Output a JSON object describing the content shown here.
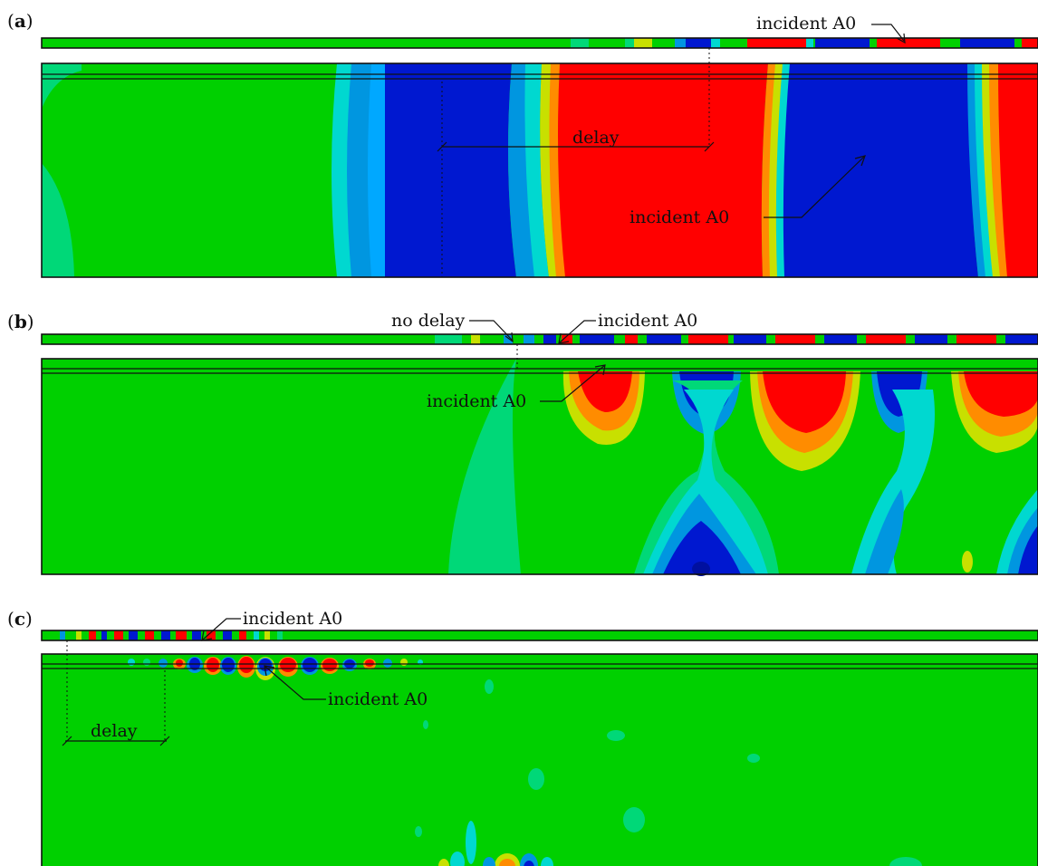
{
  "panels": [
    {
      "id": "a",
      "label_open": "(",
      "label_letter": "a",
      "label_close": ")"
    },
    {
      "id": "b",
      "label_open": "(",
      "label_letter": "b",
      "label_close": ")"
    },
    {
      "id": "c",
      "label_open": "(",
      "label_letter": "c",
      "label_close": ")"
    }
  ],
  "annotations": {
    "a_incident_top": "incident A0",
    "a_delay": "delay",
    "a_incident_main": "incident A0",
    "b_no_delay": "no delay",
    "b_incident_top": "incident A0",
    "b_incident_main": "incident A0",
    "c_incident_top": "incident A0",
    "c_incident_main": "incident A0",
    "c_delay": "delay"
  },
  "colors": {
    "green": "#00d000",
    "red": "#ff0000",
    "blue": "#0018d0",
    "light_blue": "#0096e0",
    "cyan": "#00d8d0",
    "teal": "#00d878",
    "yellow": "#c8e000",
    "orange": "#ff8c00"
  }
}
